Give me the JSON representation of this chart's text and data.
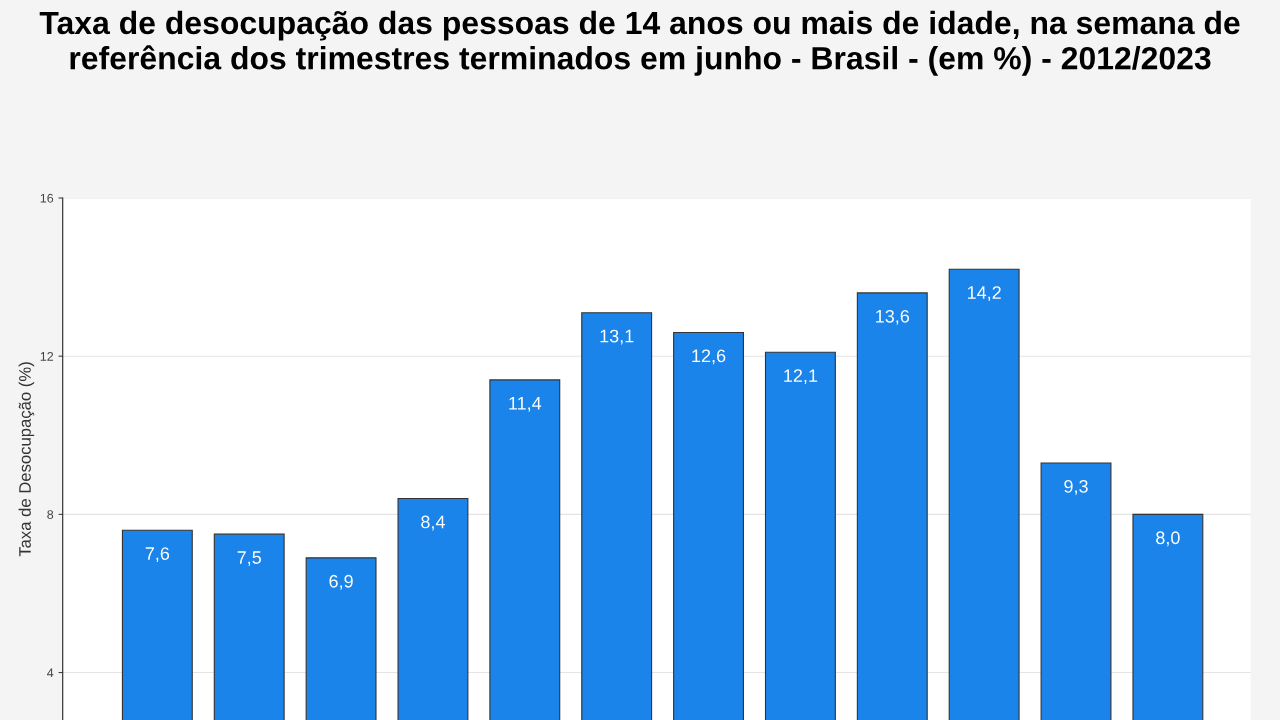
{
  "chart_data": {
    "type": "bar",
    "title": "Taxa de desocupação das pessoas de 14 anos ou mais de idade, na semana de referência dos trimestres terminados em junho - Brasil - (em %) - 2012/2023",
    "ylabel": "Taxa de Desocupação (%)",
    "categories": [
      null,
      null,
      null,
      null,
      null,
      null,
      null,
      null,
      null,
      null,
      null,
      null
    ],
    "values": [
      7.6,
      7.5,
      6.9,
      8.4,
      11.4,
      13.1,
      12.6,
      12.1,
      13.6,
      14.2,
      9.3,
      8.0
    ],
    "value_labels": [
      "7,6",
      "7,5",
      "6,9",
      "8,4",
      "11,4",
      "13,1",
      "12,6",
      "12,1",
      "13,6",
      "14,2",
      "9,3",
      "8,0"
    ],
    "color": "#1a84ea",
    "ylim": [
      2.8,
      16
    ],
    "yticks": [
      4,
      8,
      12,
      16
    ],
    "grid": "y"
  }
}
